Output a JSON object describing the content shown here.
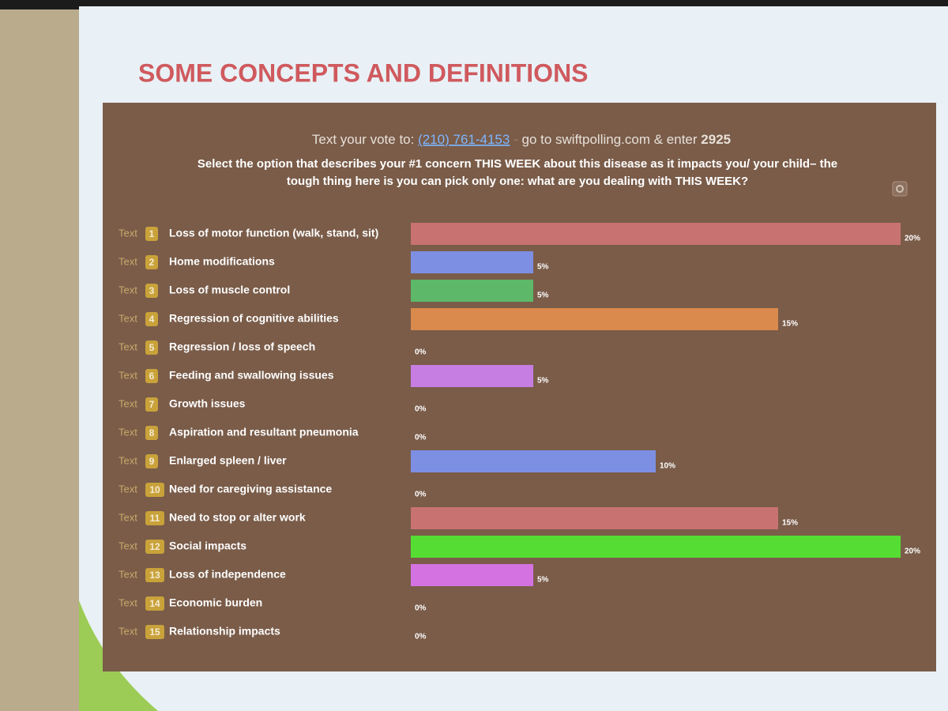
{
  "slide": {
    "title": "SOME CONCEPTS AND DEFINITIONS"
  },
  "chart_data": {
    "type": "bar",
    "orientation": "horizontal",
    "vote_line": [
      "Text your vote to:",
      "(210) 761-4153",
      "-",
      "go to swiftpolling.com & enter",
      "2925"
    ],
    "title_lines": [
      "Select the option that describes your #1 concern THIS WEEK about this disease as it impacts you/ your child– the",
      "tough thing here is you can pick only one: what are you dealing with THIS WEEK?"
    ],
    "code_prefix": "Text",
    "codes": [
      1,
      2,
      3,
      4,
      5,
      6,
      7,
      8,
      9,
      10,
      11,
      12,
      13,
      14,
      15
    ],
    "categories": [
      "Loss of motor function (walk, stand, sit)",
      "Home modifications",
      "Loss of muscle control",
      "Regression of cognitive abilities",
      "Regression / loss of speech",
      "Feeding and swallowing issues",
      "Growth issues",
      "Aspiration and resultant pneumonia",
      "Enlarged spleen / liver",
      "Need for caregiving assistance",
      "Need to stop or alter work",
      "Social impacts",
      "Loss of independence",
      "Economic burden",
      "Relationship impacts"
    ],
    "values": [
      20,
      5,
      5,
      15,
      0,
      5,
      0,
      0,
      10,
      0,
      15,
      20,
      5,
      0,
      0
    ],
    "value_labels": [
      "20%",
      "5%",
      "5%",
      "15%",
      "0%",
      "5%",
      "0%",
      "0%",
      "10%",
      "0%",
      "15%",
      "20%",
      "5%",
      "0%",
      "0%"
    ],
    "colors": [
      "#c87272",
      "#7d8fe2",
      "#5db86a",
      "#d98a4c",
      "#9a66cc",
      "#c67ee2",
      "#7fb8a0",
      "#55aa55",
      "#7d8fe2",
      "#d6c24a",
      "#c87272",
      "#55dd33",
      "#d472e2",
      "#5fa3a0",
      "#9955cc"
    ]
  }
}
